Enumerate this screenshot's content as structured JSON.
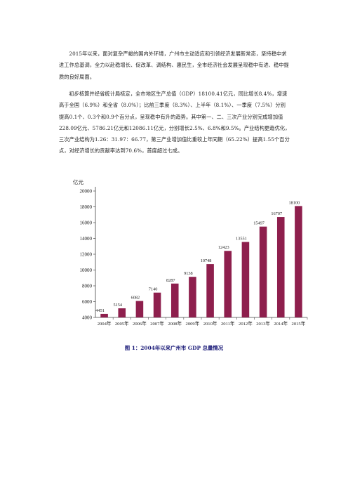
{
  "document": {
    "paragraphs": [
      "2015年以来，面对复杂严峻的国内外环境，广州市主动适应和引领经济发展新常态，坚持稳中求进工作总基调，全力以赴稳增长、促改革、调结构、惠民生，全市经济社会发展呈现稳中有进、稳中提质的良好局面。",
      "初步核算并经省统计局核定，全市地区生产总值（GDP）18100.41亿元，同比增长8.4%，增速高于全国（6.9%）和全省（8.0%）；比前三季度（8.3%）、上半年（8.1%）、一季度（7.5%）分别提高0.1个、0.3个和0.9个百分点，呈现稳中有升的趋势。其中第一、二、三次产业分别完成增加值228.09亿元、5786.21亿元和12086.11亿元，分别增长2.5%、6.8%和9.5%。产业结构更趋优化，三次产业结构为1.26：31.97：66.77，第三产业增加值比重较上年同期（65.22%）提高1.55个百分点，对经济增长的贡献率达到70.6%，首度超过七成。"
    ],
    "caption": "图 1：2004年以来广州市 GDP 总量情况"
  },
  "chart_data": {
    "type": "bar",
    "title": "",
    "ylabel": "亿元",
    "xlabel": "",
    "ylim": [
      4000,
      20000
    ],
    "yticks": [
      4000,
      6000,
      8000,
      10000,
      12000,
      14000,
      16000,
      18000,
      20000
    ],
    "grid": false,
    "legend": "none",
    "bar_color": "#8e1f4d",
    "categories": [
      "2004年",
      "2005年",
      "2006年",
      "2007年",
      "2008年",
      "2009年",
      "2010年",
      "2011年",
      "2012年",
      "2013年",
      "2014年",
      "2015年"
    ],
    "values": [
      4451,
      5154,
      6082,
      7140,
      8287,
      9138,
      10748,
      12423,
      13551,
      15497,
      16707,
      18100
    ],
    "data_labels": [
      "4451",
      "5154",
      "6082",
      "7140",
      "8287",
      "9138",
      "10748",
      "12423",
      "13551",
      "15497",
      "16707",
      "18100"
    ],
    "ytick_labels": [
      "4000",
      "6000",
      "8000",
      "10000",
      "12000",
      "14000",
      "16000",
      "18000",
      "20000"
    ]
  }
}
